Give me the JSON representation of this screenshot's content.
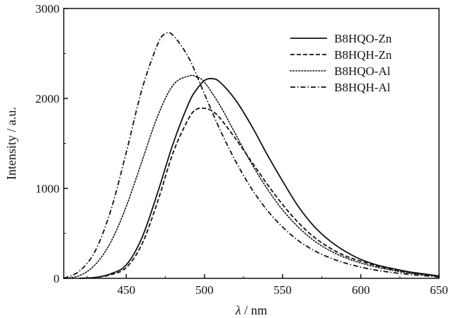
{
  "chart_data": {
    "type": "line",
    "xlabel_symbol": "λ",
    "xlabel_unit": "nm",
    "ylabel": "Intensity / a.u.",
    "xlim": [
      410,
      650
    ],
    "ylim": [
      0,
      3000
    ],
    "xticks": [
      450,
      500,
      550,
      600,
      650
    ],
    "yticks": [
      0,
      1000,
      2000,
      3000
    ],
    "grid": false,
    "legend_position": "top-right",
    "series": [
      {
        "name": "B8HQO-Zn",
        "style": "solid",
        "x": [
          420,
          430,
          440,
          450,
          460,
          470,
          480,
          490,
          495,
          500,
          505,
          510,
          520,
          530,
          540,
          550,
          560,
          570,
          580,
          590,
          600,
          610,
          620,
          630,
          640,
          650
        ],
        "y": [
          0,
          10,
          50,
          150,
          450,
          950,
          1500,
          1950,
          2100,
          2200,
          2220,
          2180,
          1980,
          1700,
          1380,
          1080,
          800,
          580,
          420,
          300,
          210,
          150,
          110,
          75,
          50,
          25
        ]
      },
      {
        "name": "B8HQH-Zn",
        "style": "dashed",
        "x": [
          420,
          430,
          440,
          450,
          460,
          470,
          480,
          490,
          495,
          500,
          505,
          510,
          520,
          530,
          540,
          550,
          560,
          570,
          580,
          590,
          600,
          610,
          620,
          630,
          640,
          650
        ],
        "y": [
          0,
          10,
          40,
          120,
          380,
          850,
          1400,
          1780,
          1880,
          1890,
          1860,
          1780,
          1550,
          1300,
          1050,
          820,
          620,
          460,
          340,
          250,
          190,
          140,
          100,
          70,
          45,
          25
        ]
      },
      {
        "name": "B8HQO-Al",
        "style": "dotted",
        "x": [
          410,
          420,
          430,
          440,
          450,
          460,
          470,
          480,
          490,
          495,
          500,
          510,
          520,
          530,
          540,
          550,
          560,
          570,
          580,
          590,
          600,
          610,
          620,
          630,
          640,
          650
        ],
        "y": [
          0,
          30,
          150,
          400,
          800,
          1300,
          1800,
          2150,
          2250,
          2240,
          2180,
          1920,
          1600,
          1280,
          1000,
          760,
          570,
          420,
          310,
          230,
          170,
          125,
          90,
          60,
          40,
          20
        ]
      },
      {
        "name": "B8HQH-Al",
        "style": "dashdot",
        "x": [
          410,
          420,
          430,
          440,
          450,
          460,
          470,
          475,
          480,
          490,
          500,
          510,
          520,
          530,
          540,
          550,
          560,
          570,
          580,
          590,
          600,
          610,
          620,
          630,
          640,
          650
        ],
        "y": [
          0,
          80,
          300,
          750,
          1400,
          2100,
          2600,
          2720,
          2700,
          2450,
          2050,
          1650,
          1300,
          1000,
          760,
          570,
          420,
          310,
          230,
          170,
          125,
          90,
          65,
          45,
          30,
          15
        ]
      }
    ]
  }
}
